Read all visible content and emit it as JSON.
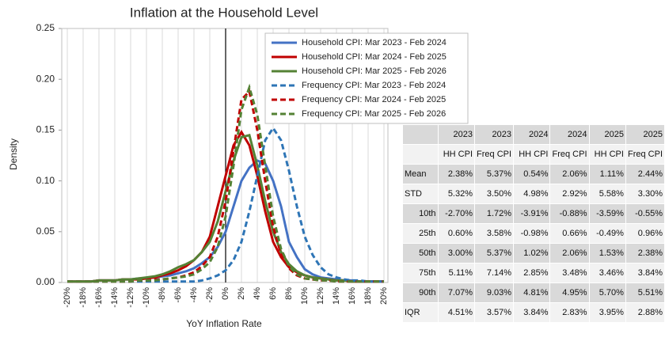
{
  "chart_data": {
    "type": "line",
    "title": "Inflation at the Household Level",
    "x_label": "YoY Inflation Rate",
    "y_label": "Density",
    "x": [
      -20,
      -19,
      -18,
      -17,
      -16,
      -15,
      -14,
      -13,
      -12,
      -11,
      -10,
      -9,
      -8,
      -7,
      -6,
      -5,
      -4,
      -3,
      -2,
      -1,
      0,
      1,
      2,
      3,
      4,
      5,
      6,
      7,
      8,
      9,
      10,
      11,
      12,
      13,
      14,
      15,
      16,
      17,
      18,
      19,
      20
    ],
    "xlim": [
      -20,
      20
    ],
    "ylim": [
      0,
      0.25
    ],
    "xticks": [
      {
        "value": -20,
        "label": "-20%"
      },
      {
        "value": -18,
        "label": "-18%"
      },
      {
        "value": -16,
        "label": "-16%"
      },
      {
        "value": -14,
        "label": "-14%"
      },
      {
        "value": -12,
        "label": "-12%"
      },
      {
        "value": -10,
        "label": "-10%"
      },
      {
        "value": -8,
        "label": "-8%"
      },
      {
        "value": -6,
        "label": "-6%"
      },
      {
        "value": -4,
        "label": "-4%"
      },
      {
        "value": -2,
        "label": "-2%"
      },
      {
        "value": 0,
        "label": "0%"
      },
      {
        "value": 2,
        "label": "2%"
      },
      {
        "value": 4,
        "label": "4%"
      },
      {
        "value": 6,
        "label": "6%"
      },
      {
        "value": 8,
        "label": "8%"
      },
      {
        "value": 10,
        "label": "10%"
      },
      {
        "value": 12,
        "label": "12%"
      },
      {
        "value": 14,
        "label": "14%"
      },
      {
        "value": 16,
        "label": "16%"
      },
      {
        "value": 18,
        "label": "18%"
      },
      {
        "value": 20,
        "label": "20%"
      }
    ],
    "yticks": [
      {
        "value": 0,
        "label": "0.00"
      },
      0.05,
      {
        "value": 0.1,
        "label": "0.10"
      },
      0.15,
      {
        "value": 0.2,
        "label": "0.20"
      },
      0.25
    ],
    "vline": 0,
    "grid": true,
    "legend": "top-right",
    "series": [
      {
        "name": "Household CPI: Mar 2023 - Feb 2024",
        "color": "#4472c4",
        "dash": false,
        "values": [
          0.001,
          0.001,
          0.001,
          0.001,
          0.002,
          0.002,
          0.002,
          0.003,
          0.003,
          0.004,
          0.004,
          0.005,
          0.006,
          0.007,
          0.009,
          0.011,
          0.014,
          0.019,
          0.025,
          0.035,
          0.05,
          0.075,
          0.1,
          0.113,
          0.12,
          0.117,
          0.1,
          0.075,
          0.04,
          0.025,
          0.013,
          0.008,
          0.005,
          0.004,
          0.003,
          0.002,
          0.002,
          0.001,
          0.001,
          0.001,
          0.001
        ]
      },
      {
        "name": "Household CPI: Mar 2024 - Feb 2025",
        "color": "#c00000",
        "dash": false,
        "values": [
          0.001,
          0.001,
          0.001,
          0.001,
          0.002,
          0.002,
          0.002,
          0.003,
          0.003,
          0.003,
          0.004,
          0.005,
          0.007,
          0.009,
          0.012,
          0.016,
          0.022,
          0.03,
          0.045,
          0.075,
          0.105,
          0.135,
          0.148,
          0.135,
          0.105,
          0.07,
          0.04,
          0.025,
          0.015,
          0.01,
          0.007,
          0.005,
          0.004,
          0.003,
          0.002,
          0.002,
          0.001,
          0.001,
          0.001,
          0.001,
          0.001
        ]
      },
      {
        "name": "Household CPI: Mar 2025 - Feb 2026",
        "color": "#548235",
        "dash": false,
        "values": [
          0.001,
          0.001,
          0.001,
          0.001,
          0.002,
          0.002,
          0.002,
          0.003,
          0.003,
          0.004,
          0.005,
          0.006,
          0.008,
          0.011,
          0.015,
          0.018,
          0.022,
          0.03,
          0.04,
          0.06,
          0.09,
          0.12,
          0.143,
          0.145,
          0.115,
          0.08,
          0.05,
          0.03,
          0.018,
          0.011,
          0.007,
          0.005,
          0.004,
          0.003,
          0.002,
          0.002,
          0.001,
          0.001,
          0.001,
          0.001,
          0.001
        ]
      },
      {
        "name": "Frequency CPI: Mar 2023 - Feb 2024",
        "color": "#2e75b6",
        "dash": true,
        "values": [
          0.001,
          0.001,
          0.001,
          0.001,
          0.001,
          0.001,
          0.001,
          0.001,
          0.001,
          0.001,
          0.001,
          0.001,
          0.001,
          0.001,
          0.001,
          0.001,
          0.001,
          0.002,
          0.004,
          0.007,
          0.012,
          0.022,
          0.04,
          0.07,
          0.105,
          0.14,
          0.152,
          0.14,
          0.11,
          0.075,
          0.045,
          0.027,
          0.015,
          0.008,
          0.005,
          0.003,
          0.002,
          0.002,
          0.001,
          0.001,
          0.001
        ]
      },
      {
        "name": "Frequency CPI: Mar 2024 - Feb 2025",
        "color": "#c00000",
        "dash": true,
        "values": [
          0.001,
          0.001,
          0.001,
          0.001,
          0.001,
          0.001,
          0.001,
          0.001,
          0.001,
          0.002,
          0.002,
          0.003,
          0.003,
          0.004,
          0.005,
          0.007,
          0.01,
          0.016,
          0.025,
          0.045,
          0.08,
          0.13,
          0.18,
          0.188,
          0.15,
          0.1,
          0.055,
          0.028,
          0.014,
          0.007,
          0.004,
          0.003,
          0.002,
          0.002,
          0.001,
          0.001,
          0.001,
          0.001,
          0.001,
          0.001,
          0.001
        ]
      },
      {
        "name": "Frequency CPI: Mar 2025 - Feb 2026",
        "color": "#548235",
        "dash": true,
        "values": [
          0.001,
          0.001,
          0.001,
          0.001,
          0.001,
          0.001,
          0.001,
          0.001,
          0.001,
          0.002,
          0.002,
          0.002,
          0.003,
          0.004,
          0.005,
          0.006,
          0.008,
          0.013,
          0.02,
          0.035,
          0.065,
          0.115,
          0.17,
          0.192,
          0.165,
          0.115,
          0.065,
          0.033,
          0.016,
          0.008,
          0.004,
          0.003,
          0.002,
          0.002,
          0.001,
          0.001,
          0.001,
          0.001,
          0.001,
          0.001,
          0.001
        ]
      }
    ]
  },
  "table": {
    "columns": [
      {
        "year": "2023",
        "type": "HH CPI"
      },
      {
        "year": "2023",
        "type": "Freq CPI"
      },
      {
        "year": "2024",
        "type": "HH CPI"
      },
      {
        "year": "2024",
        "type": "Freq CPI"
      },
      {
        "year": "2025",
        "type": "HH CPI"
      },
      {
        "year": "2025",
        "type": "Freq CPI"
      }
    ],
    "rows": [
      {
        "label": "Mean",
        "values": [
          "2.38%",
          "5.37%",
          "0.54%",
          "2.06%",
          "1.11%",
          "2.44%"
        ]
      },
      {
        "label": "STD",
        "values": [
          "5.32%",
          "3.50%",
          "4.98%",
          "2.92%",
          "5.58%",
          "3.30%"
        ]
      },
      {
        "label": "10th",
        "values": [
          "-2.70%",
          "1.72%",
          "-3.91%",
          "-0.88%",
          "-3.59%",
          "-0.55%"
        ]
      },
      {
        "label": "25th",
        "values": [
          "0.60%",
          "3.58%",
          "-0.98%",
          "0.66%",
          "-0.49%",
          "0.96%"
        ]
      },
      {
        "label": "50th",
        "values": [
          "3.00%",
          "5.37%",
          "1.02%",
          "2.06%",
          "1.53%",
          "2.38%"
        ]
      },
      {
        "label": "75th",
        "values": [
          "5.11%",
          "7.14%",
          "2.85%",
          "3.48%",
          "3.46%",
          "3.84%"
        ]
      },
      {
        "label": "90th",
        "values": [
          "7.07%",
          "9.03%",
          "4.81%",
          "4.95%",
          "5.70%",
          "5.51%"
        ]
      },
      {
        "label": "IQR",
        "values": [
          "4.51%",
          "3.57%",
          "3.84%",
          "2.83%",
          "3.95%",
          "2.88%"
        ]
      }
    ]
  }
}
